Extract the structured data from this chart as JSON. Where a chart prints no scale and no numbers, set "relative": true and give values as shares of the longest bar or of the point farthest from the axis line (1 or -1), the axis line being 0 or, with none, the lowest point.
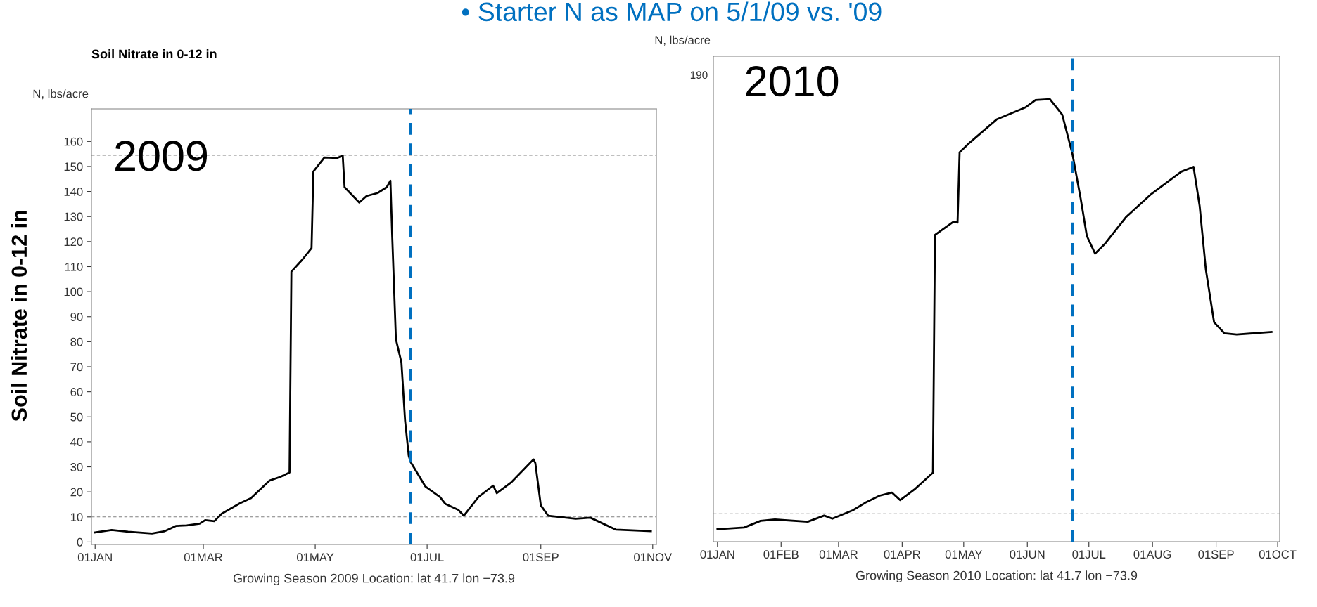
{
  "chart_data": [
    {
      "type": "line",
      "title": "Soil Nitrate in 0-12 in",
      "ylabel": "N, lbs/acre",
      "xlabel": "Growing Season 2009 Location: lat 41.7 lon −73.9",
      "annotations": [
        "2009",
        "Soil Nitrate in 0-12 in",
        "• Starter N as MAP on 5/1/09 vs. '09"
      ],
      "series": [
        {
          "color": "#000000",
          "x": [
            "2009-01-01",
            "2009-01-10",
            "2009-01-19",
            "2009-02-01",
            "2009-02-08",
            "2009-02-14",
            "2009-02-20",
            "2009-02-27",
            "2009-03-02",
            "2009-03-07",
            "2009-03-11",
            "2009-03-21",
            "2009-03-27",
            "2009-04-06",
            "2009-04-12",
            "2009-04-17",
            "2009-04-18",
            "2009-04-24",
            "2009-04-29",
            "2009-04-30",
            "2009-05-06",
            "2009-05-13",
            "2009-05-16",
            "2009-05-17",
            "2009-05-25",
            "2009-05-29",
            "2009-06-04",
            "2009-06-09",
            "2009-06-11",
            "2009-06-12",
            "2009-06-14",
            "2009-06-17",
            "2009-06-19",
            "2009-06-21",
            "2009-06-22",
            "2009-06-30",
            "2009-07-08",
            "2009-07-11",
            "2009-07-18",
            "2009-07-21",
            "2009-07-29",
            "2009-08-06",
            "2009-08-08",
            "2009-08-16",
            "2009-08-28",
            "2009-08-29",
            "2009-09-01",
            "2009-09-05",
            "2009-09-20",
            "2009-09-28",
            "2009-10-12",
            "2009-10-31"
          ],
          "values": [
            3.8,
            4.8,
            4.1,
            3.4,
            4.3,
            6.4,
            6.6,
            7.3,
            8.7,
            8.3,
            11.3,
            15.5,
            17.5,
            24.5,
            26,
            27.8,
            108,
            112.8,
            117.4,
            148,
            153.6,
            153.4,
            154.3,
            141.7,
            135.6,
            138.2,
            139.4,
            141.7,
            144.3,
            121.9,
            81,
            71.7,
            48.4,
            34.4,
            32,
            22.2,
            18,
            15.2,
            12.8,
            10.5,
            18,
            22.5,
            19.5,
            23.9,
            33,
            31.5,
            14.6,
            10.5,
            9.3,
            9.7,
            4.9,
            4.3
          ]
        }
      ],
      "xlim": [
        "2008-12-30",
        "2009-11-03"
      ],
      "xticks": [
        {
          "value": "2009-01-01",
          "label": "01JAN"
        },
        {
          "value": "2009-03-01",
          "label": "01MAR"
        },
        {
          "value": "2009-05-01",
          "label": "01MAY"
        },
        {
          "value": "2009-07-01",
          "label": "01JUL"
        },
        {
          "value": "2009-09-01",
          "label": "01SEP"
        },
        {
          "value": "2009-11-01",
          "label": "01NOV"
        }
      ],
      "ylim": [
        -1,
        173
      ],
      "yticks": [
        0,
        10,
        20,
        30,
        40,
        50,
        60,
        70,
        80,
        90,
        100,
        110,
        120,
        130,
        140,
        150,
        160
      ],
      "ref_lines": [
        {
          "axis": "y",
          "value": 154.5,
          "label": null,
          "color": "#808080",
          "line_style": "dashed"
        },
        {
          "axis": "y",
          "value": 10,
          "label": null,
          "color": "#808080",
          "line_style": "dashed"
        },
        {
          "axis": "x",
          "value": "2009-06-22",
          "label": null,
          "color": "#0070c0",
          "line_style": "dashed"
        }
      ]
    },
    {
      "type": "line",
      "ylabel": "N, lbs/acre",
      "xlabel": "Growing Season 2010 Location: lat 41.7 lon −73.9",
      "relative": true,
      "tick_labels": "x",
      "annotations": [
        "2010",
        "190"
      ],
      "series": [
        {
          "color": "#000000",
          "x": [
            "2010-01-01",
            "2010-01-14",
            "2010-01-22",
            "2010-01-29",
            "2010-02-14",
            "2010-02-22",
            "2010-02-26",
            "2010-03-08",
            "2010-03-14",
            "2010-03-21",
            "2010-03-27",
            "2010-03-31",
            "2010-04-07",
            "2010-04-16",
            "2010-04-17",
            "2010-04-26",
            "2010-04-28",
            "2010-04-29",
            "2010-05-04",
            "2010-05-17",
            "2010-05-31",
            "2010-06-05",
            "2010-06-12",
            "2010-06-18",
            "2010-06-23",
            "2010-06-27",
            "2010-06-30",
            "2010-07-04",
            "2010-07-09",
            "2010-07-19",
            "2010-07-31",
            "2010-08-15",
            "2010-08-21",
            "2010-08-24",
            "2010-08-27",
            "2010-08-31",
            "2010-09-05",
            "2010-09-11",
            "2010-09-28"
          ],
          "values": [
            0.028,
            0.032,
            0.047,
            0.05,
            0.045,
            0.059,
            0.052,
            0.071,
            0.088,
            0.104,
            0.111,
            0.094,
            0.118,
            0.156,
            0.693,
            0.723,
            0.721,
            0.88,
            0.902,
            0.954,
            0.981,
            0.998,
            1,
            0.965,
            0.876,
            0.775,
            0.691,
            0.651,
            0.674,
            0.733,
            0.784,
            0.836,
            0.847,
            0.758,
            0.615,
            0.496,
            0.471,
            0.468,
            0.474
          ]
        }
      ],
      "xlim": [
        "2009-12-30",
        "2010-10-02"
      ],
      "xticks": [
        {
          "value": "2010-01-01",
          "label": "01JAN"
        },
        {
          "value": "2010-02-01",
          "label": "01FEB"
        },
        {
          "value": "2010-03-01",
          "label": "01MAR"
        },
        {
          "value": "2010-04-01",
          "label": "01APR"
        },
        {
          "value": "2010-05-01",
          "label": "01MAY"
        },
        {
          "value": "2010-06-01",
          "label": "01JUN"
        },
        {
          "value": "2010-07-01",
          "label": "01JUL"
        },
        {
          "value": "2010-08-01",
          "label": "01AUG"
        },
        {
          "value": "2010-09-01",
          "label": "01SEP"
        },
        {
          "value": "2010-10-01",
          "label": "01OCT"
        }
      ],
      "ref_lines": [
        {
          "axis": "y",
          "value": 0.831,
          "label": null,
          "color": "#808080",
          "line_style": "dashed"
        },
        {
          "axis": "y",
          "value": 0.063,
          "label": null,
          "color": "#808080",
          "line_style": "dashed"
        },
        {
          "axis": "x",
          "value": "2010-06-23",
          "label": null,
          "color": "#0070c0",
          "line_style": "dashed"
        }
      ]
    }
  ]
}
